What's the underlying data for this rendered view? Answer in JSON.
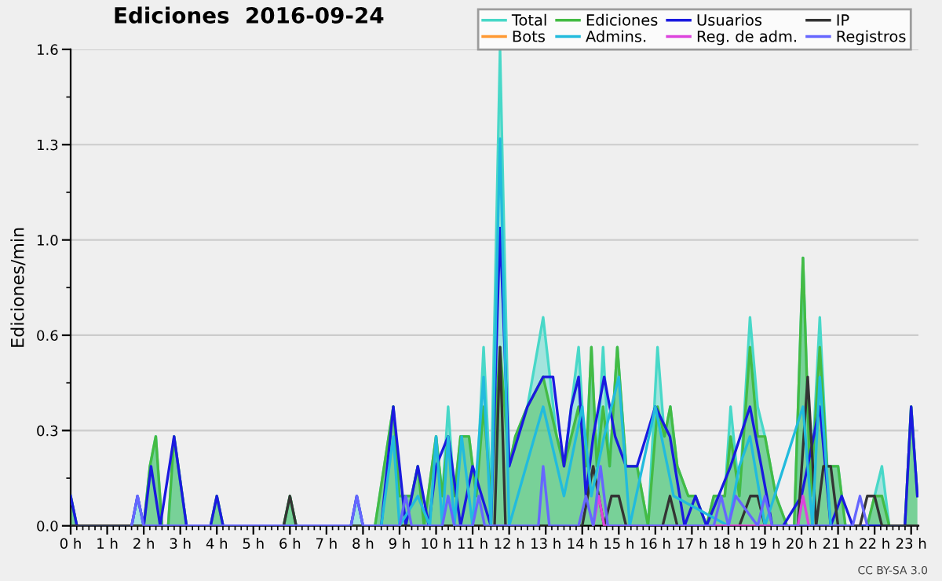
{
  "chart_data": {
    "type": "line",
    "title": "Ediciones  2016-09-24",
    "ylabel": "Ediciones/min",
    "annotations": [
      "CC BY-SA 3.0"
    ],
    "xlim": [
      0,
      23.2
    ],
    "xticks": [
      {
        "value": 0,
        "label": "0 h"
      },
      {
        "value": 1,
        "label": "1 h"
      },
      {
        "value": 2,
        "label": "2 h"
      },
      {
        "value": 3,
        "label": "3 h"
      },
      {
        "value": 4,
        "label": "4 h"
      },
      {
        "value": 5,
        "label": "5 h"
      },
      {
        "value": 6,
        "label": "6 h"
      },
      {
        "value": 7,
        "label": "7 h"
      },
      {
        "value": 8,
        "label": "8 h"
      },
      {
        "value": 9,
        "label": "9 h"
      },
      {
        "value": 10,
        "label": "10 h"
      },
      {
        "value": 11,
        "label": "11 h"
      },
      {
        "value": 12,
        "label": "12 h"
      },
      {
        "value": 13,
        "label": "13 h"
      },
      {
        "value": 14,
        "label": "14 h"
      },
      {
        "value": 15,
        "label": "15 h"
      },
      {
        "value": 16,
        "label": "16 h"
      },
      {
        "value": 17,
        "label": "17 h"
      },
      {
        "value": 18,
        "label": "18 h"
      },
      {
        "value": 19,
        "label": "19 h"
      },
      {
        "value": 20,
        "label": "20 h"
      },
      {
        "value": 21,
        "label": "21 h"
      },
      {
        "value": 22,
        "label": "22 h"
      },
      {
        "value": 23,
        "label": "23 h"
      }
    ],
    "ylim": [
      0,
      1.6
    ],
    "yticks": [
      {
        "value": 0,
        "label": "0.0"
      },
      {
        "value": 0.32,
        "label": "0.3"
      },
      {
        "value": 0.64,
        "label": "0.6"
      },
      {
        "value": 0.96,
        "label": "1.0"
      },
      {
        "value": 1.28,
        "label": "1.3"
      },
      1.6
    ],
    "grid": "y",
    "legend": "top right",
    "series": [
      {
        "name": "Total",
        "type": "area",
        "color": "#48d8c8",
        "x": [
          0,
          0.17,
          1.67,
          1.83,
          2,
          2.17,
          2.33,
          2.5,
          2.67,
          2.83,
          3.17,
          3.83,
          4,
          4.17,
          5.83,
          6,
          6.17,
          7.67,
          7.83,
          8,
          8.33,
          8.83,
          9,
          9.33,
          9.5,
          9.67,
          10,
          10.17,
          10.33,
          10.5,
          10.67,
          10.9,
          11.1,
          11.3,
          11.5,
          11.75,
          12,
          12.17,
          12.5,
          12.93,
          13.3,
          13.5,
          13.9,
          14.1,
          14.25,
          14.4,
          14.57,
          14.75,
          14.96,
          15.2,
          15.5,
          15.8,
          16.06,
          16.25,
          16.41,
          16.6,
          16.9,
          17.1,
          17.4,
          17.6,
          17.9,
          18.06,
          18.3,
          18.59,
          18.8,
          19.0,
          19.3,
          19.6,
          19.8,
          20.04,
          20.25,
          20.5,
          20.7,
          21.0,
          21.2,
          21.5,
          21.8,
          22.0,
          22.2,
          22.4,
          22.6,
          22.83,
          23.0,
          23.17
        ],
        "values": [
          0.1,
          0,
          0,
          0.1,
          0,
          0.2,
          0.3,
          0,
          0,
          0.3,
          0,
          0,
          0.1,
          0,
          0,
          0.1,
          0,
          0,
          0.1,
          0,
          0,
          0.4,
          0.1,
          0.1,
          0.2,
          0,
          0.3,
          0.1,
          0.4,
          0.1,
          0.3,
          0.3,
          0.1,
          0.6,
          0.1,
          1.6,
          0.2,
          0.3,
          0.4,
          0.7,
          0.3,
          0.2,
          0.6,
          0.2,
          0.6,
          0.2,
          0.6,
          0.2,
          0.6,
          0.2,
          0.2,
          0,
          0.6,
          0.3,
          0.4,
          0.2,
          0.1,
          0.1,
          0,
          0.1,
          0.1,
          0.4,
          0.1,
          0.7,
          0.4,
          0.3,
          0.1,
          0,
          0,
          0.9,
          0.1,
          0.7,
          0.2,
          0.2,
          0,
          0,
          0,
          0.1,
          0.2,
          0,
          0,
          0,
          0.4,
          0.1
        ]
      },
      {
        "name": "Ediciones",
        "type": "area",
        "color": "#44bb44",
        "x": [
          0,
          0.17,
          1.67,
          1.83,
          2,
          2.17,
          2.33,
          2.5,
          2.67,
          2.83,
          3.17,
          3.83,
          4,
          4.17,
          5.83,
          6,
          6.17,
          7.67,
          7.83,
          8,
          8.33,
          8.83,
          9,
          9.33,
          9.5,
          9.67,
          10,
          10.17,
          10.33,
          10.5,
          10.67,
          10.9,
          11.1,
          11.3,
          11.5,
          11.75,
          12,
          12.17,
          12.5,
          12.93,
          13.3,
          13.5,
          13.9,
          14.1,
          14.25,
          14.4,
          14.57,
          14.75,
          14.96,
          15.2,
          15.5,
          15.8,
          16.06,
          16.25,
          16.41,
          16.6,
          16.9,
          17.1,
          17.4,
          17.6,
          17.9,
          18.06,
          18.3,
          18.59,
          18.8,
          19.0,
          19.3,
          19.6,
          19.8,
          20.04,
          20.25,
          20.5,
          20.7,
          21.0,
          21.2,
          21.5,
          21.8,
          22.0,
          22.2,
          22.4,
          22.6,
          22.83,
          23.0,
          23.17
        ],
        "values": [
          0.1,
          0,
          0,
          0,
          0,
          0.2,
          0.3,
          0,
          0,
          0.3,
          0,
          0,
          0.1,
          0,
          0,
          0.1,
          0,
          0,
          0,
          0,
          0,
          0.4,
          0.1,
          0.1,
          0.2,
          0,
          0.3,
          0.1,
          0.3,
          0.1,
          0.3,
          0.3,
          0.1,
          0.4,
          0.1,
          0.6,
          0.2,
          0.3,
          0.4,
          0.5,
          0.3,
          0.2,
          0.4,
          0.2,
          0.6,
          0.2,
          0.4,
          0.2,
          0.6,
          0.2,
          0.2,
          0,
          0.4,
          0.3,
          0.4,
          0.2,
          0.1,
          0.1,
          0,
          0.1,
          0.1,
          0.3,
          0.1,
          0.6,
          0.3,
          0.3,
          0.1,
          0,
          0,
          0.9,
          0.1,
          0.6,
          0.2,
          0.2,
          0,
          0,
          0,
          0.1,
          0.1,
          0,
          0,
          0,
          0.4,
          0.1
        ]
      },
      {
        "name": "Usuarios",
        "color": "#1a1adf",
        "x": [
          0,
          0.17,
          1.67,
          1.83,
          2.0,
          2.2,
          2.45,
          2.83,
          3.17,
          3.83,
          4.0,
          4.17,
          7.67,
          7.83,
          8.0,
          8.5,
          8.83,
          9.17,
          9.5,
          9.8,
          10.0,
          10.33,
          10.67,
          11.0,
          11.5,
          11.75,
          12.0,
          12.5,
          12.93,
          13.2,
          13.5,
          13.7,
          13.9,
          14.1,
          14.3,
          14.6,
          14.9,
          15.2,
          15.5,
          16.0,
          16.4,
          16.8,
          17.1,
          17.4,
          18.06,
          18.59,
          18.9,
          19.2,
          19.5,
          20.0,
          20.5,
          20.8,
          21.1,
          21.4,
          22.6,
          22.83,
          23.0,
          23.17
        ],
        "values": [
          0.1,
          0,
          0,
          0.1,
          0,
          0.2,
          0,
          0.3,
          0,
          0,
          0.1,
          0,
          0,
          0.1,
          0,
          0,
          0.4,
          0,
          0.2,
          0,
          0.2,
          0.3,
          0,
          0.2,
          0,
          1.0,
          0.2,
          0.4,
          0.5,
          0.5,
          0.2,
          0.4,
          0.5,
          0.1,
          0.3,
          0.5,
          0.3,
          0.2,
          0.2,
          0.4,
          0.3,
          0,
          0.1,
          0,
          0.2,
          0.4,
          0.2,
          0,
          0,
          0.1,
          0.4,
          0,
          0.1,
          0,
          0,
          0,
          0.4,
          0.1
        ]
      },
      {
        "name": "IP",
        "color": "#333333",
        "x": [
          0,
          5.83,
          6.0,
          6.17,
          11.6,
          11.75,
          11.9,
          14.0,
          14.3,
          14.6,
          14.8,
          15.0,
          15.2,
          16.2,
          16.4,
          16.6,
          18.3,
          18.6,
          18.8,
          19.0,
          19.9,
          20.17,
          20.4,
          20.6,
          20.8,
          21.0,
          21.3,
          21.6,
          21.8,
          22.0,
          22.2,
          23.17
        ],
        "values": [
          0,
          0,
          0.1,
          0,
          0,
          0.6,
          0,
          0,
          0.2,
          0,
          0.1,
          0.1,
          0,
          0,
          0.1,
          0,
          0,
          0.1,
          0.1,
          0,
          0,
          0.5,
          0,
          0.2,
          0.2,
          0,
          0,
          0,
          0.1,
          0.1,
          0,
          0
        ]
      },
      {
        "name": "Bots",
        "color": "#ff9933"
      },
      {
        "name": "Admins.",
        "color": "#22bbdd",
        "x": [
          8.5,
          8.83,
          9.0,
          9.5,
          9.83,
          10.0,
          10.17,
          10.33,
          10.5,
          10.7,
          11.0,
          11.3,
          11.5,
          11.75,
          12.0,
          12.93,
          13.5,
          14.0,
          14.25,
          14.6,
          15.0,
          15.3,
          16.0,
          16.5,
          18.0,
          18.3,
          18.59,
          19.0,
          20.04,
          20.3,
          20.5,
          20.8
        ],
        "values": [
          0,
          0.3,
          0,
          0.1,
          0,
          0.3,
          0,
          0.3,
          0,
          0.3,
          0,
          0.5,
          0,
          1.3,
          0,
          0.4,
          0.1,
          0.4,
          0.1,
          0.3,
          0.5,
          0,
          0.4,
          0.1,
          0,
          0.2,
          0.3,
          0,
          0.4,
          0,
          0.5,
          0
        ]
      },
      {
        "name": "Reg. de adm.",
        "color": "#dd44dd",
        "x": [
          14.3,
          14.45,
          14.6,
          19.9,
          20.04,
          20.2
        ],
        "values": [
          0,
          0.1,
          0,
          0,
          0.1,
          0
        ]
      },
      {
        "name": "Registros",
        "color": "#6666ff",
        "x": [
          1.67,
          1.83,
          2.0,
          7.67,
          7.83,
          8.0,
          9.0,
          9.17,
          9.33,
          10.17,
          10.33,
          10.5,
          11.0,
          11.17,
          11.33,
          12.8,
          12.93,
          13.1,
          13.9,
          14.1,
          14.3,
          14.5,
          14.7,
          17.6,
          17.8,
          18.0,
          18.2,
          18.8,
          19.0,
          19.2,
          21.4,
          21.6,
          21.8
        ],
        "values": [
          0,
          0.1,
          0,
          0,
          0.1,
          0,
          0,
          0.1,
          0,
          0,
          0.1,
          0,
          0,
          0.1,
          0,
          0,
          0.2,
          0,
          0,
          0.1,
          0,
          0.2,
          0,
          0,
          0.1,
          0,
          0.1,
          0,
          0.1,
          0,
          0,
          0.1,
          0
        ]
      }
    ]
  }
}
